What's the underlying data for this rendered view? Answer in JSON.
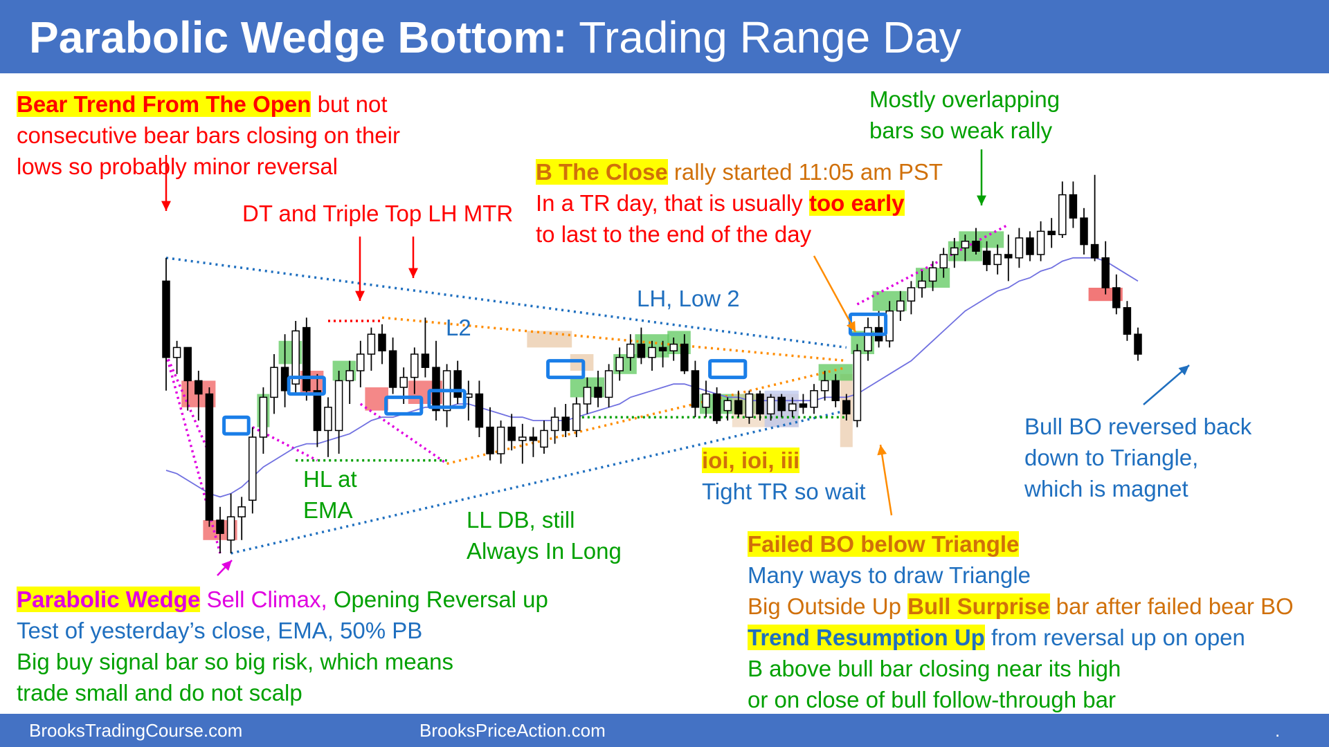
{
  "title": {
    "bold": "Parabolic Wedge Bottom:",
    "rest": " Trading Range Day"
  },
  "footer": {
    "left": "BrooksTradingCourse.com",
    "center": "BrooksPriceAction.com",
    "right": "."
  },
  "annotations": {
    "bear_trend": {
      "hl": "Bear Trend From The Open",
      "t1": " but not",
      "l2": "consecutive bear bars closing on their",
      "l3": "lows so probably minor reversal"
    },
    "dt_triple": "DT and Triple Top LH MTR",
    "l2": "L2",
    "lh_low2": "LH, Low 2",
    "b_close": {
      "hl": "B The Close",
      "t1": " rally started 11:05 am PST",
      "l2a": "In a TR day, that is usually ",
      "l2hl": "too early",
      "l3": "to last to the end of the day"
    },
    "mostly": {
      "l1": "Mostly overlapping",
      "l2": "bars so weak rally"
    },
    "hl_ema": {
      "l1": "HL at",
      "l2": "EMA"
    },
    "ll_db": {
      "l1": "LL DB, still",
      "l2": "Always In Long"
    },
    "ioi": {
      "hl": "ioi, ioi, iii",
      "l2": "Tight TR so wait"
    },
    "bull_bo": {
      "l1": "Bull BO reversed back",
      "l2": "down to Triangle,",
      "l3": "which is magnet"
    },
    "parabolic": {
      "hl": "Parabolic Wedge",
      "t1": " Sell Climax,",
      "t2": " Opening Reversal up",
      "l2": "Test of yesterday’s close, EMA, 50% PB",
      "l3": "Big buy signal bar so big risk, which means",
      "l4": "trade small and do not scalp"
    },
    "failed_bo": {
      "hl": "Failed BO below Triangle",
      "l2": "Many ways to draw Triangle",
      "l3a": "Big Outside Up ",
      "l3hl": "Bull Surprise",
      "l3b": " bar after failed bear BO",
      "l4hl": "Trend Resumption Up",
      "l4b": " from reversal up on open",
      "l5": "B above bull bar closing near its high",
      "l6": "or on close of bull follow-through bar"
    }
  },
  "colors": {
    "bull": "#ffffff",
    "bear": "#000000",
    "ema": "#7070e0",
    "green_box": "#5ec85e",
    "red_box": "#f06060",
    "blue_box": "#1a7ee8",
    "tan_box": "#e9c9a8",
    "lavender_box": "#b8c4ec"
  },
  "chart_data": {
    "type": "candlestick",
    "price_range": [
      0,
      100
    ],
    "bars": [
      {
        "o": 82,
        "h": 89,
        "l": 49,
        "c": 59
      },
      {
        "o": 59,
        "h": 64,
        "l": 54,
        "c": 62
      },
      {
        "o": 62,
        "h": 62,
        "l": 43,
        "c": 52
      },
      {
        "o": 52,
        "h": 55,
        "l": 40,
        "c": 48
      },
      {
        "o": 48,
        "h": 50,
        "l": 8,
        "c": 10
      },
      {
        "o": 10,
        "h": 14,
        "l": 0,
        "c": 6
      },
      {
        "o": 4,
        "h": 18,
        "l": 0,
        "c": 11
      },
      {
        "o": 11,
        "h": 17,
        "l": 4,
        "c": 14
      },
      {
        "o": 16,
        "h": 38,
        "l": 12,
        "c": 35
      },
      {
        "o": 35,
        "h": 50,
        "l": 30,
        "c": 47
      },
      {
        "o": 47,
        "h": 60,
        "l": 42,
        "c": 56
      },
      {
        "o": 56,
        "h": 66,
        "l": 44,
        "c": 49
      },
      {
        "o": 51,
        "h": 70,
        "l": 48,
        "c": 67
      },
      {
        "o": 68,
        "h": 71,
        "l": 46,
        "c": 49
      },
      {
        "o": 49,
        "h": 54,
        "l": 32,
        "c": 37
      },
      {
        "o": 37,
        "h": 47,
        "l": 29,
        "c": 44
      },
      {
        "o": 37,
        "h": 55,
        "l": 30,
        "c": 52
      },
      {
        "o": 52,
        "h": 58,
        "l": 45,
        "c": 55
      },
      {
        "o": 55,
        "h": 64,
        "l": 50,
        "c": 60
      },
      {
        "o": 60,
        "h": 68,
        "l": 55,
        "c": 66
      },
      {
        "o": 66,
        "h": 69,
        "l": 57,
        "c": 61
      },
      {
        "o": 61,
        "h": 65,
        "l": 48,
        "c": 50
      },
      {
        "o": 50,
        "h": 56,
        "l": 45,
        "c": 53
      },
      {
        "o": 53,
        "h": 62,
        "l": 48,
        "c": 60
      },
      {
        "o": 60,
        "h": 71,
        "l": 53,
        "c": 56
      },
      {
        "o": 56,
        "h": 64,
        "l": 40,
        "c": 43
      },
      {
        "o": 43,
        "h": 57,
        "l": 38,
        "c": 55
      },
      {
        "o": 55,
        "h": 58,
        "l": 45,
        "c": 47
      },
      {
        "o": 47,
        "h": 52,
        "l": 40,
        "c": 48
      },
      {
        "o": 48,
        "h": 52,
        "l": 35,
        "c": 38
      },
      {
        "o": 38,
        "h": 44,
        "l": 28,
        "c": 30
      },
      {
        "o": 30,
        "h": 40,
        "l": 27,
        "c": 38
      },
      {
        "o": 38,
        "h": 42,
        "l": 31,
        "c": 34
      },
      {
        "o": 34,
        "h": 39,
        "l": 27,
        "c": 35
      },
      {
        "o": 35,
        "h": 38,
        "l": 29,
        "c": 34
      },
      {
        "o": 32,
        "h": 40,
        "l": 30,
        "c": 37
      },
      {
        "o": 37,
        "h": 44,
        "l": 33,
        "c": 41
      },
      {
        "o": 41,
        "h": 45,
        "l": 35,
        "c": 37
      },
      {
        "o": 37,
        "h": 47,
        "l": 35,
        "c": 45
      },
      {
        "o": 45,
        "h": 53,
        "l": 42,
        "c": 50
      },
      {
        "o": 50,
        "h": 55,
        "l": 44,
        "c": 47
      },
      {
        "o": 47,
        "h": 57,
        "l": 44,
        "c": 55
      },
      {
        "o": 55,
        "h": 62,
        "l": 52,
        "c": 59
      },
      {
        "o": 59,
        "h": 66,
        "l": 55,
        "c": 63
      },
      {
        "o": 63,
        "h": 68,
        "l": 57,
        "c": 59
      },
      {
        "o": 59,
        "h": 64,
        "l": 55,
        "c": 62
      },
      {
        "o": 62,
        "h": 64,
        "l": 56,
        "c": 61
      },
      {
        "o": 61,
        "h": 65,
        "l": 58,
        "c": 63
      },
      {
        "o": 63,
        "h": 66,
        "l": 54,
        "c": 55
      },
      {
        "o": 55,
        "h": 58,
        "l": 41,
        "c": 44
      },
      {
        "o": 44,
        "h": 52,
        "l": 41,
        "c": 48
      },
      {
        "o": 48,
        "h": 50,
        "l": 39,
        "c": 40
      },
      {
        "o": 43,
        "h": 47,
        "l": 40,
        "c": 46
      },
      {
        "o": 46,
        "h": 49,
        "l": 41,
        "c": 42
      },
      {
        "o": 41,
        "h": 49,
        "l": 39,
        "c": 48
      },
      {
        "o": 48,
        "h": 49,
        "l": 40,
        "c": 42
      },
      {
        "o": 42,
        "h": 48,
        "l": 40,
        "c": 47
      },
      {
        "o": 47,
        "h": 48,
        "l": 41,
        "c": 43
      },
      {
        "o": 43,
        "h": 47,
        "l": 41,
        "c": 45
      },
      {
        "o": 45,
        "h": 48,
        "l": 42,
        "c": 44
      },
      {
        "o": 44,
        "h": 51,
        "l": 42,
        "c": 49
      },
      {
        "o": 49,
        "h": 55,
        "l": 46,
        "c": 52
      },
      {
        "o": 52,
        "h": 54,
        "l": 44,
        "c": 46
      },
      {
        "o": 46,
        "h": 48,
        "l": 40,
        "c": 42
      },
      {
        "o": 40,
        "h": 63,
        "l": 38,
        "c": 61
      },
      {
        "o": 61,
        "h": 71,
        "l": 58,
        "c": 68
      },
      {
        "o": 68,
        "h": 73,
        "l": 62,
        "c": 64
      },
      {
        "o": 64,
        "h": 76,
        "l": 62,
        "c": 73
      },
      {
        "o": 73,
        "h": 79,
        "l": 70,
        "c": 76
      },
      {
        "o": 76,
        "h": 82,
        "l": 72,
        "c": 80
      },
      {
        "o": 80,
        "h": 85,
        "l": 77,
        "c": 82
      },
      {
        "o": 82,
        "h": 88,
        "l": 79,
        "c": 86
      },
      {
        "o": 86,
        "h": 92,
        "l": 83,
        "c": 90
      },
      {
        "o": 90,
        "h": 95,
        "l": 86,
        "c": 92
      },
      {
        "o": 92,
        "h": 96,
        "l": 88,
        "c": 94
      },
      {
        "o": 94,
        "h": 98,
        "l": 90,
        "c": 91
      },
      {
        "o": 91,
        "h": 94,
        "l": 85,
        "c": 87
      },
      {
        "o": 87,
        "h": 93,
        "l": 84,
        "c": 90
      },
      {
        "o": 90,
        "h": 96,
        "l": 82,
        "c": 89
      },
      {
        "o": 89,
        "h": 98,
        "l": 86,
        "c": 95
      },
      {
        "o": 95,
        "h": 97,
        "l": 88,
        "c": 90
      },
      {
        "o": 90,
        "h": 100,
        "l": 88,
        "c": 97
      },
      {
        "o": 97,
        "h": 101,
        "l": 92,
        "c": 96
      },
      {
        "o": 96,
        "h": 112,
        "l": 95,
        "c": 108
      },
      {
        "o": 108,
        "h": 112,
        "l": 98,
        "c": 101
      },
      {
        "o": 101,
        "h": 104,
        "l": 90,
        "c": 93
      },
      {
        "o": 93,
        "h": 114,
        "l": 88,
        "c": 89
      },
      {
        "o": 89,
        "h": 94,
        "l": 78,
        "c": 80
      },
      {
        "o": 80,
        "h": 84,
        "l": 72,
        "c": 74
      },
      {
        "o": 74,
        "h": 76,
        "l": 64,
        "c": 66
      },
      {
        "o": 66,
        "h": 68,
        "l": 58,
        "c": 60
      }
    ],
    "ema": [
      25,
      24,
      22,
      20,
      18,
      17,
      18,
      20,
      23,
      26,
      28,
      30,
      32,
      33,
      33,
      34,
      35,
      36,
      38,
      40,
      41,
      41,
      42,
      43,
      44,
      44,
      44,
      45,
      45,
      44,
      43,
      42,
      41,
      41,
      40,
      40,
      40,
      40,
      41,
      42,
      43,
      44,
      45,
      47,
      48,
      49,
      50,
      51,
      51,
      50,
      49,
      48,
      47,
      47,
      46,
      46,
      46,
      46,
      46,
      46,
      46,
      47,
      47,
      47,
      48,
      50,
      52,
      54,
      56,
      58,
      61,
      64,
      67,
      70,
      73,
      75,
      77,
      79,
      80,
      82,
      83,
      85,
      86,
      88,
      89,
      89,
      89,
      88,
      86,
      84,
      82
    ]
  }
}
